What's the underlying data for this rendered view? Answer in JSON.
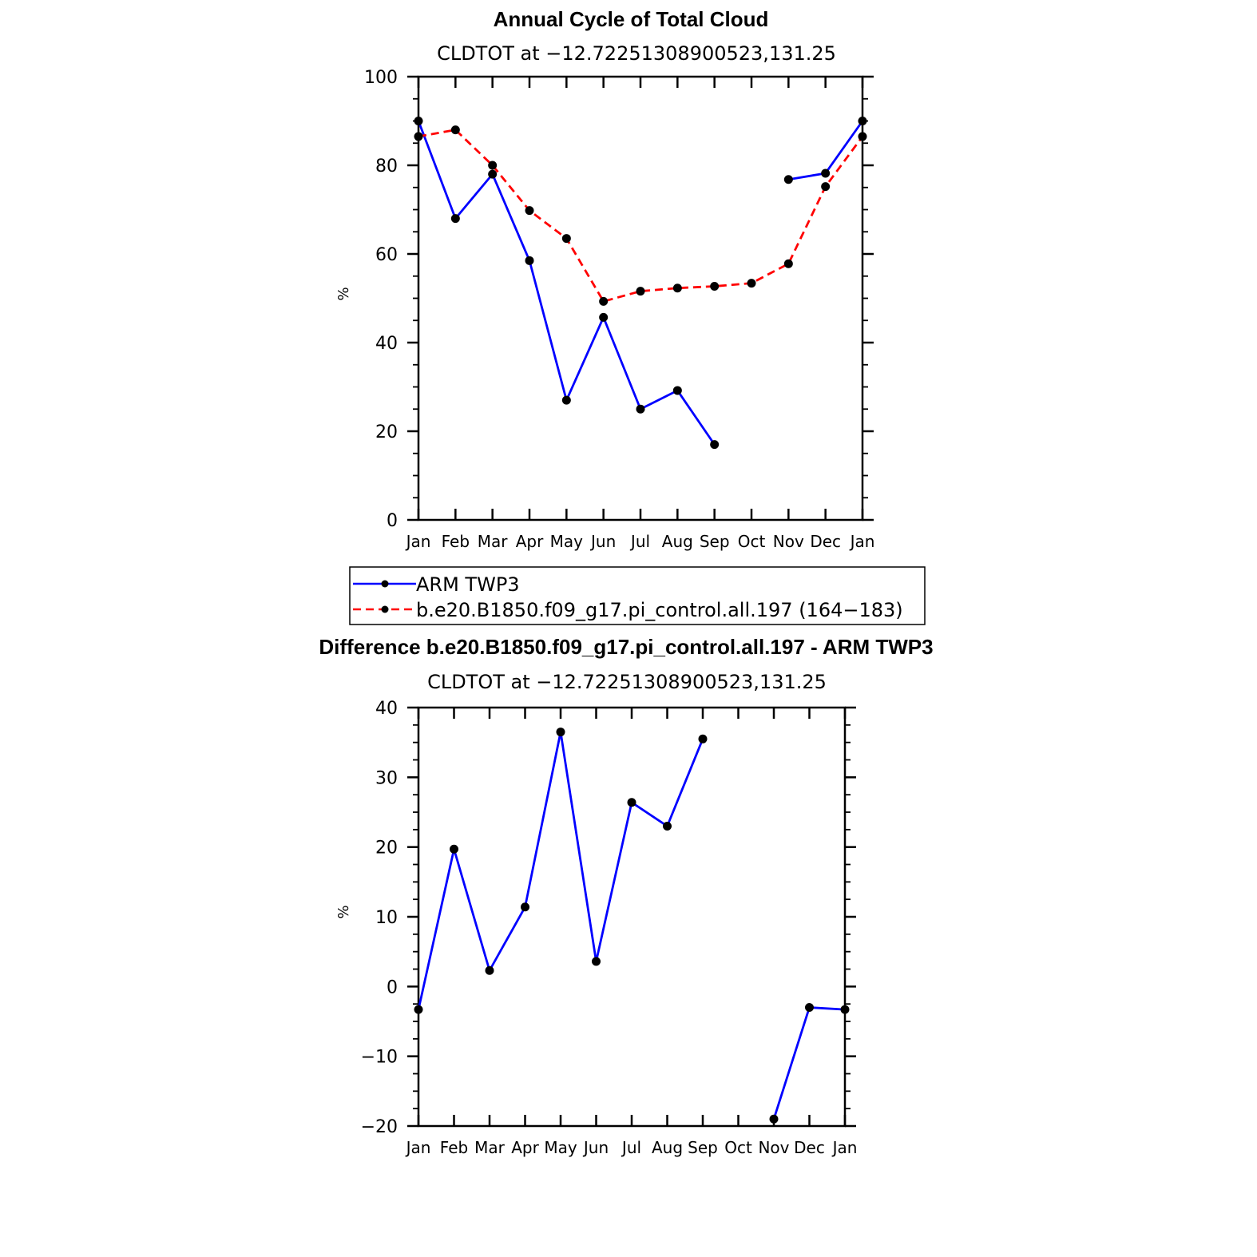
{
  "colors": {
    "obs": "#0000ff",
    "model": "#ff0000",
    "marker": "#000000",
    "axis": "#000000"
  },
  "chart_data": [
    {
      "type": "line",
      "title": "Annual Cycle of Total Cloud",
      "subtitle": "CLDTOT at −12.72251308900523,131.25",
      "ylabel": "%",
      "ylim": [
        0,
        100
      ],
      "yticks": [
        0,
        20,
        40,
        60,
        80,
        100
      ],
      "categories": [
        "Jan",
        "Feb",
        "Mar",
        "Apr",
        "May",
        "Jun",
        "Jul",
        "Aug",
        "Sep",
        "Oct",
        "Nov",
        "Dec",
        "Jan"
      ],
      "series": [
        {
          "name": "ARM TWP3",
          "style": "solid",
          "color": "#0000ff",
          "values": [
            90,
            68,
            78,
            58.5,
            27,
            45.7,
            25,
            29.2,
            17,
            null,
            76.8,
            78.2,
            90
          ]
        },
        {
          "name": "b.e20.B1850.f09_g17.pi_control.all.197 (164−183)",
          "style": "dashed",
          "color": "#ff0000",
          "values": [
            86.5,
            88,
            80,
            69.8,
            63.5,
            49.3,
            51.6,
            52.3,
            52.7,
            53.4,
            57.8,
            75.2,
            86.5
          ]
        }
      ],
      "legend": "below"
    },
    {
      "type": "line",
      "title": "Difference b.e20.B1850.f09_g17.pi_control.all.197 - ARM TWP3",
      "subtitle": "CLDTOT at −12.72251308900523,131.25",
      "ylabel": "%",
      "ylim": [
        -20,
        40
      ],
      "yticks": [
        -20,
        -10,
        0,
        10,
        20,
        30,
        40
      ],
      "ytick_labels": [
        "−20",
        "−10",
        "0",
        "10",
        "20",
        "30",
        "40"
      ],
      "categories": [
        "Jan",
        "Feb",
        "Mar",
        "Apr",
        "May",
        "Jun",
        "Jul",
        "Aug",
        "Sep",
        "Oct",
        "Nov",
        "Dec",
        "Jan"
      ],
      "series": [
        {
          "name": "difference",
          "style": "solid",
          "color": "#0000ff",
          "values": [
            -3.3,
            19.7,
            2.3,
            11.4,
            36.5,
            3.6,
            26.4,
            23.0,
            35.5,
            null,
            -19.0,
            -3.0,
            -3.3
          ]
        }
      ]
    }
  ]
}
